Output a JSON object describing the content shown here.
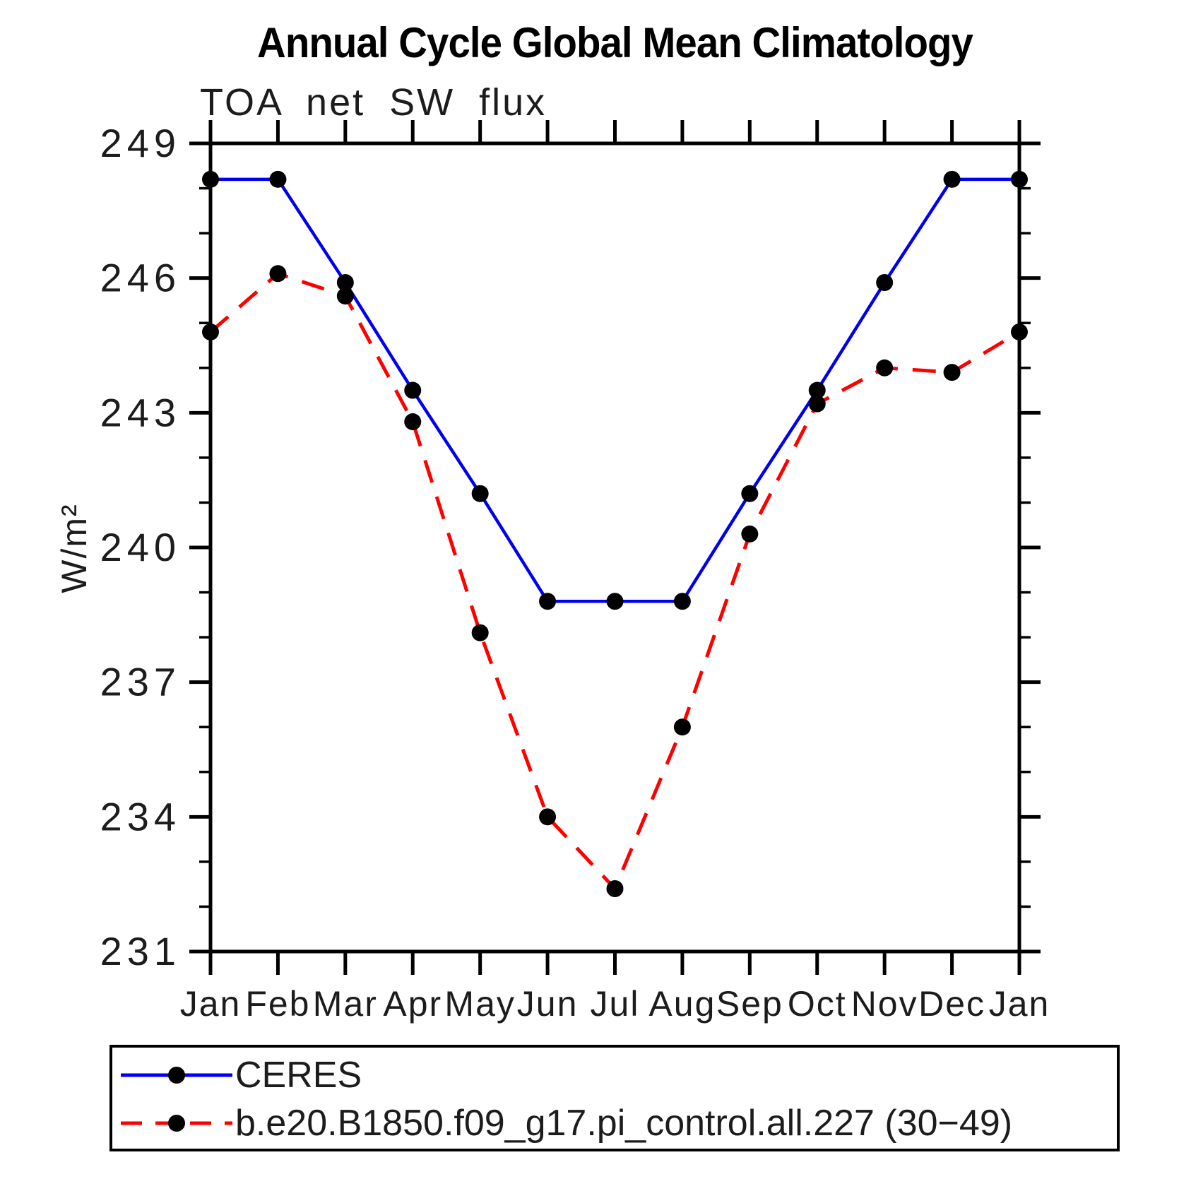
{
  "figure": {
    "background": "#ffffff"
  },
  "chart_data": {
    "type": "line",
    "title": "Annual Cycle Global Mean Climatology",
    "subtitle": "TOA net SW flux",
    "xlabel": "",
    "ylabel": "W/m²",
    "categories": [
      "Jan",
      "Feb",
      "Mar",
      "Apr",
      "May",
      "Jun",
      "Jul",
      "Aug",
      "Sep",
      "Oct",
      "Nov",
      "Dec",
      "Jan"
    ],
    "ylim": [
      231,
      249
    ],
    "ytick_major_step": 3,
    "ytick_minor_step": 1,
    "ytick_major_labels": [
      "231",
      "234",
      "237",
      "240",
      "243",
      "246",
      "249"
    ],
    "grid": false,
    "legend_position": "bottom-left-box",
    "axis_color": "#000000",
    "marker_color": "#000000",
    "series": [
      {
        "name": "CERES",
        "color": "#0000ee",
        "line_style": "solid",
        "marker": "circle",
        "values": [
          248.2,
          248.2,
          245.9,
          243.5,
          241.2,
          238.8,
          238.8,
          238.8,
          241.2,
          243.5,
          245.9,
          248.2,
          248.2
        ]
      },
      {
        "name": "b.e20.B1850.f09_g17.pi_control.all.227 (30−49)",
        "color": "#ff0000",
        "line_style": "dashed",
        "marker": "circle",
        "values": [
          244.8,
          246.1,
          245.6,
          242.8,
          238.1,
          234.0,
          232.4,
          236.0,
          240.3,
          243.2,
          244.0,
          243.9,
          244.8
        ]
      }
    ]
  }
}
